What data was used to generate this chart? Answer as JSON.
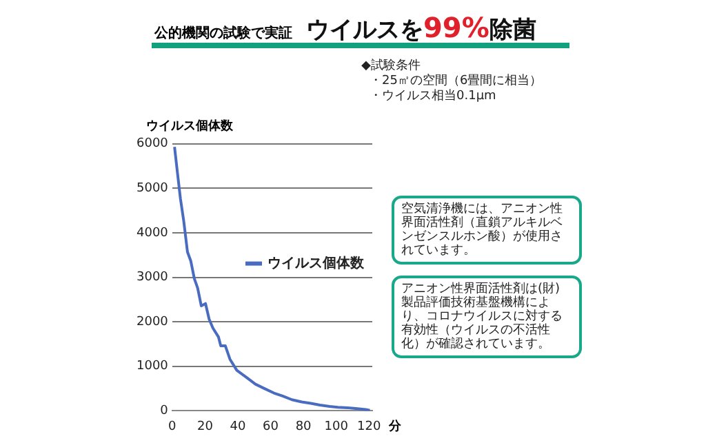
{
  "chart_data": {
    "type": "line",
    "title": "ウイルスを99%除菌",
    "subtitle": "公的機関の試験で実証",
    "ylabel": "ウイルス個体数",
    "xlabel": "分",
    "annotations": [
      "◆試験条件",
      "・25㎡の空間（6畳間に相当）",
      "・ウイルス相当0.1μm",
      "空気清浄機には、アニオン性界面活性剤（直鎖アルキルベンゼンスルホン酸）が使用されています。",
      "アニオン性界面活性剤は(財)製品評価技術基盤機構により、コロナウイルスに対する有効性（ウイルスの不活性化）が確認されています。"
    ],
    "x": [
      1.4,
      3.4,
      5,
      7,
      9.3,
      11.3,
      13.5,
      15.5,
      17.7,
      20.3,
      22.5,
      24.8,
      28.2,
      29.6,
      32.4,
      35.2,
      39.4,
      45,
      50.7,
      56.3,
      62,
      67.6,
      73,
      79,
      84.5,
      90,
      96,
      101,
      107,
      113,
      118,
      120.5
    ],
    "series": [
      {
        "name": "ウイルス個体数",
        "color": "#4a6cc0",
        "values": [
          5930,
          5280,
          4770,
          4270,
          3570,
          3370,
          2970,
          2760,
          2360,
          2410,
          2060,
          1860,
          1660,
          1460,
          1460,
          1160,
          910,
          760,
          600,
          500,
          400,
          330,
          250,
          200,
          170,
          130,
          100,
          80,
          70,
          50,
          30,
          10
        ]
      }
    ],
    "xlim": [
      0,
      122
    ],
    "xticks": [
      0,
      20,
      40,
      60,
      80,
      100,
      120
    ],
    "ylim": [
      0,
      6000
    ],
    "yticks": [
      0,
      1000,
      2000,
      3000,
      4000,
      5000,
      6000
    ],
    "grid": "y",
    "legend": "right",
    "marker": "none",
    "line_style": "solid"
  }
}
